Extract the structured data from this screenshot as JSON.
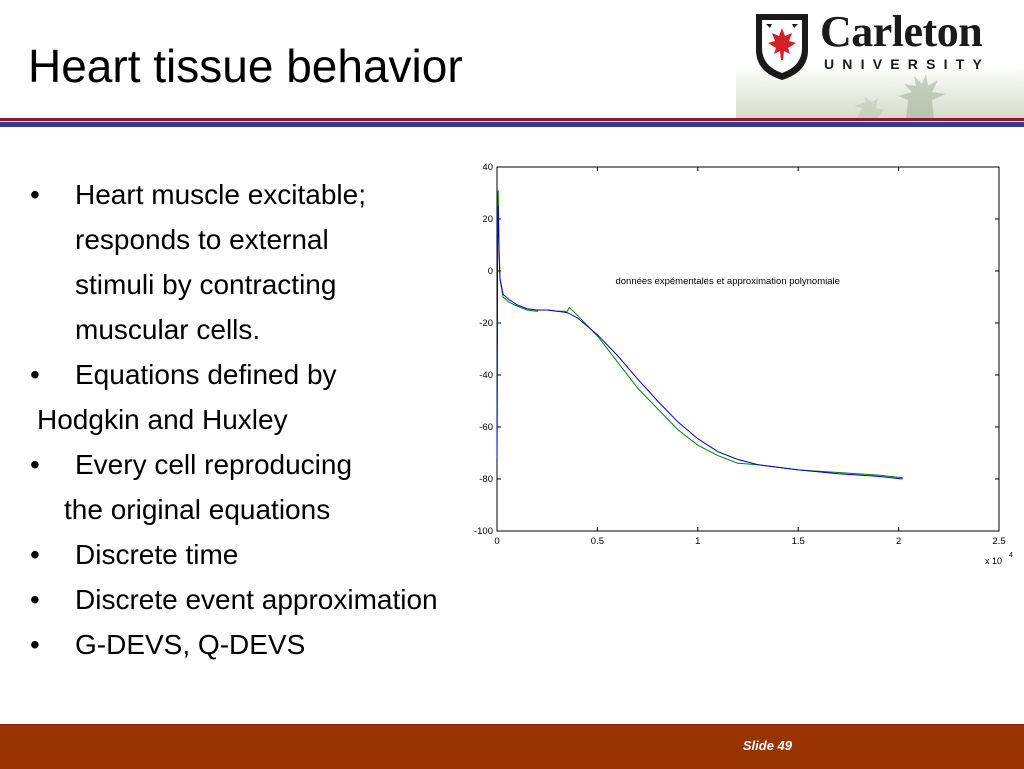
{
  "slide": {
    "title": "Heart tissue behavior",
    "slide_number": "Slide 49"
  },
  "logo": {
    "name": "Carleton",
    "sub": "UNIVERSITY"
  },
  "bullets": [
    {
      "bullet": "•",
      "lines": [
        "Heart muscle excitable;",
        "responds to external",
        "stimuli by contracting",
        "muscular cells."
      ]
    },
    {
      "bullet": "•",
      "lines": [
        "Equations defined by"
      ]
    },
    {
      "bullet": "",
      "lines": [
        "Hodgkin and Huxley"
      ]
    },
    {
      "bullet": "•",
      "lines": [
        "Every cell reproducing"
      ]
    },
    {
      "bullet": "",
      "lines": [
        "the original equations"
      ]
    },
    {
      "bullet": "•",
      "lines": [
        "Discrete time"
      ]
    },
    {
      "bullet": "•",
      "lines": [
        "Discrete event approximation"
      ]
    },
    {
      "bullet": "•",
      "lines": [
        "G-DEVS, Q-DEVS"
      ]
    }
  ],
  "chart_data": {
    "type": "line",
    "title": "",
    "annotation": "données expémentales et approximation polynomiale",
    "xlabel": "",
    "ylabel": "",
    "x_multiplier": "x 10",
    "x_multiplier_exp": "4",
    "xlim": [
      0,
      2.5
    ],
    "ylim": [
      -100,
      40
    ],
    "x_ticks": [
      0,
      0.5,
      1,
      1.5,
      2,
      2.5
    ],
    "x_tick_labels": [
      "0",
      "0.5",
      "1",
      "1.5",
      "2",
      "2.5"
    ],
    "y_ticks": [
      40,
      20,
      0,
      -20,
      -40,
      -60,
      -80,
      -100
    ],
    "y_tick_labels": [
      "40",
      "20",
      "0",
      "-20",
      "-40",
      "-60",
      "-80",
      "-100"
    ],
    "grid": false,
    "series": [
      {
        "color": "#008000",
        "x": [
          0,
          0.001,
          0.003,
          0.006,
          0.01,
          0.015,
          0.03,
          0.06,
          0.1,
          0.15,
          0.2,
          0.205,
          0.25,
          0.3,
          0.35,
          0.36,
          0.4,
          0.5,
          0.6,
          0.7,
          0.8,
          0.9,
          1.0,
          1.1,
          1.2,
          1.21,
          1.3,
          1.5,
          1.7,
          1.9,
          2.02
        ],
        "y": [
          -72,
          -50,
          20,
          31,
          10,
          -3,
          -10,
          -12,
          -13.5,
          -15,
          -15.5,
          -15,
          -15,
          -15.5,
          -15.5,
          -14,
          -17,
          -25,
          -35,
          -45,
          -53,
          -61,
          -67,
          -71,
          -74,
          -74,
          -74.5,
          -76.5,
          -77.5,
          -78.5,
          -79.5
        ]
      },
      {
        "color": "#0000cc",
        "x": [
          0,
          0.001,
          0.003,
          0.006,
          0.01,
          0.015,
          0.03,
          0.06,
          0.1,
          0.15,
          0.2,
          0.25,
          0.3,
          0.35,
          0.4,
          0.5,
          0.6,
          0.7,
          0.8,
          0.9,
          1.0,
          1.1,
          1.2,
          1.3,
          1.5,
          1.7,
          1.9,
          2.02
        ],
        "y": [
          -72,
          -40,
          12,
          25,
          7,
          -3,
          -9,
          -11,
          -13,
          -14.5,
          -15,
          -15,
          -15.5,
          -16,
          -18,
          -24.5,
          -32.5,
          -41.5,
          -50,
          -58,
          -64.5,
          -69.5,
          -72.5,
          -74.5,
          -76.5,
          -78,
          -79,
          -80
        ]
      }
    ]
  }
}
